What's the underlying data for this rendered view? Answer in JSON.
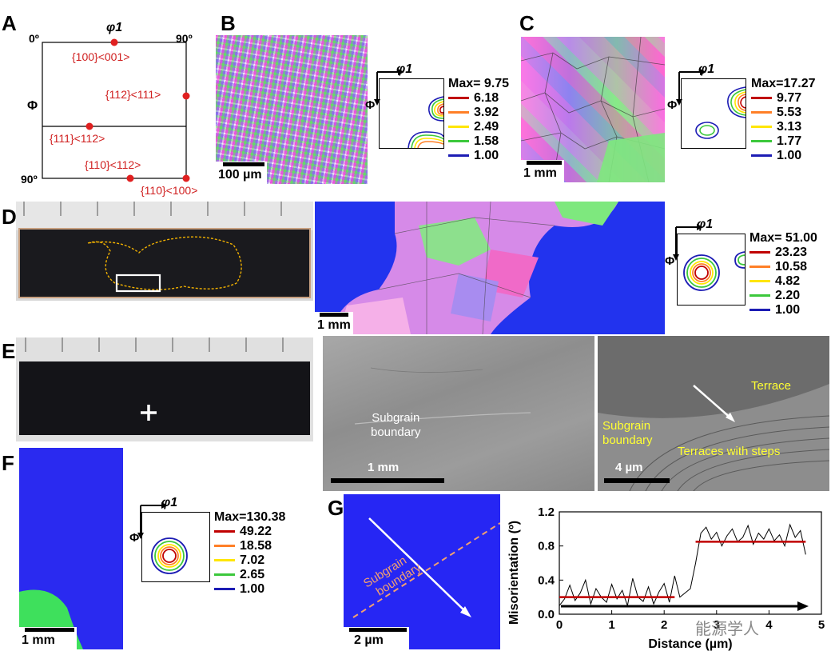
{
  "labels": {
    "A": "A",
    "B": "B",
    "C": "C",
    "D": "D",
    "E": "E",
    "F": "F",
    "G": "G"
  },
  "panelA": {
    "phi1": "φ1",
    "Phi": "Φ",
    "top_left": "0º",
    "top_right": "90º",
    "bottom_left": "90º",
    "orientations": [
      "{100}<001>",
      "{112}<111>",
      "{111}<112>",
      "{110}<112>",
      "{110}<100>"
    ]
  },
  "odf_axes": {
    "phi1": "φ1",
    "Phi": "Φ"
  },
  "panelB": {
    "scale": "100 µm",
    "legend": [
      "Max= 9.75",
      "6.18",
      "3.92",
      "2.49",
      "1.58",
      "1.00"
    ]
  },
  "panelC": {
    "scale": "1 mm",
    "legend": [
      "Max=17.27",
      "9.77",
      "5.53",
      "3.13",
      "1.77",
      "1.00"
    ]
  },
  "panelD": {
    "scale": "1 mm",
    "legend": [
      "Max= 51.00",
      "23.23",
      "10.58",
      "4.82",
      "2.20",
      "1.00"
    ]
  },
  "panelE": {
    "sem1": {
      "label1": "Subgrain",
      "label2": "boundary",
      "scale": "1 mm"
    },
    "sem2": {
      "label1": "Subgrain",
      "label2": "boundary",
      "terrace": "Terrace",
      "terraces_steps": "Terraces with steps",
      "scale": "4 µm"
    }
  },
  "panelF": {
    "scale": "1 mm",
    "legend": [
      "Max=130.38",
      "49.22",
      "18.58",
      "7.02",
      "2.65",
      "1.00"
    ]
  },
  "panelG": {
    "scale": "2 µm",
    "boundary1": "Subgrain",
    "boundary2": "boundary",
    "watermark": "能源学人"
  },
  "legend_colors": [
    "#c00000",
    "#ff7f27",
    "#ffe600",
    "#3cc83c",
    "#1c1cb4"
  ],
  "chart_data": {
    "type": "line",
    "xlabel": "Distance (µm)",
    "ylabel": "Misorientation (º)",
    "xlim": [
      0,
      5
    ],
    "ylim": [
      0,
      1.2
    ],
    "xticks": [
      "0",
      "1",
      "2",
      "3",
      "4",
      "5"
    ],
    "yticks": [
      "0.0",
      "0.4",
      "0.8",
      "1.2"
    ],
    "series": [
      {
        "x": [
          0,
          0.1,
          0.2,
          0.3,
          0.4,
          0.5,
          0.6,
          0.7,
          0.8,
          0.9,
          1.0,
          1.1,
          1.2,
          1.3,
          1.4,
          1.5,
          1.6,
          1.7,
          1.8,
          1.9,
          2.0,
          2.1,
          2.2,
          2.3,
          2.4,
          2.5,
          2.6,
          2.7,
          2.8,
          2.9,
          3.0,
          3.1,
          3.2,
          3.3,
          3.4,
          3.5,
          3.6,
          3.7,
          3.8,
          3.9,
          4.0,
          4.1,
          4.2,
          4.3,
          4.4,
          4.5,
          4.6,
          4.7
        ],
        "y": [
          0.1,
          0.18,
          0.34,
          0.16,
          0.25,
          0.4,
          0.12,
          0.3,
          0.2,
          0.14,
          0.35,
          0.18,
          0.28,
          0.1,
          0.42,
          0.2,
          0.15,
          0.32,
          0.12,
          0.26,
          0.36,
          0.14,
          0.45,
          0.2,
          0.25,
          0.3,
          0.6,
          0.95,
          1.02,
          0.88,
          0.96,
          0.8,
          0.92,
          1.0,
          0.85,
          0.9,
          1.04,
          0.82,
          0.95,
          0.88,
          1.0,
          0.86,
          0.93,
          0.8,
          1.05,
          0.9,
          0.98,
          0.7
        ]
      },
      {
        "x": [
          0,
          2.2
        ],
        "y": [
          0.2,
          0.2
        ]
      },
      {
        "x": [
          2.6,
          4.7
        ],
        "y": [
          0.85,
          0.85
        ]
      }
    ]
  }
}
